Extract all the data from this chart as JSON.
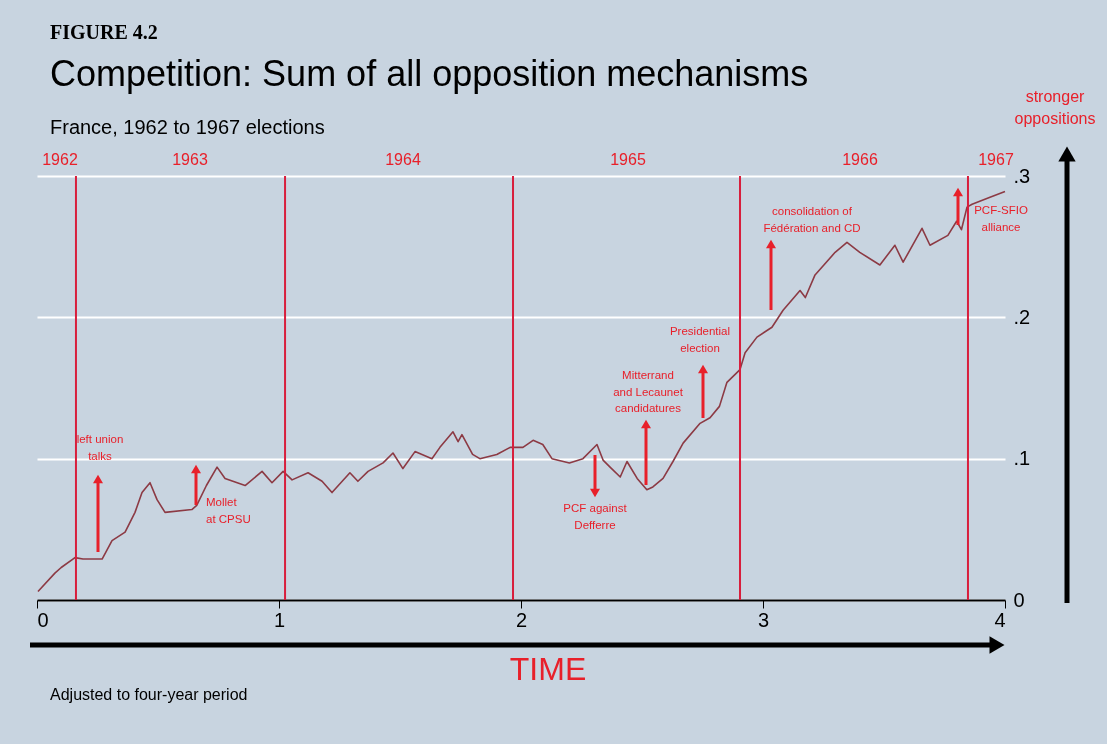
{
  "chart_data": {
    "type": "line",
    "title": "Competition: Sum of all opposition mechanisms",
    "subtitle": "France, 1962 to 1967 elections",
    "xlabel": "TIME",
    "ylabel": "stronger oppositions",
    "xlim": [
      0,
      4
    ],
    "xticks": [
      0,
      1,
      2,
      3,
      4
    ],
    "ylim": [
      0,
      0.3
    ],
    "yticks": [
      0,
      {
        "value": 0.1,
        "label": ".1"
      },
      {
        "value": 0.2,
        "label": ".2"
      },
      {
        "value": 0.3,
        "label": ".3"
      }
    ],
    "grid": "y",
    "series": [
      {
        "color": "#8c3a44",
        "x": [
          0.004,
          0.074,
          0.1,
          0.157,
          0.19,
          0.269,
          0.31,
          0.364,
          0.405,
          0.434,
          0.467,
          0.496,
          0.529,
          0.64,
          0.66,
          0.7,
          0.744,
          0.777,
          0.86,
          0.93,
          0.971,
          1.017,
          1.054,
          1.12,
          1.178,
          1.219,
          1.293,
          1.326,
          1.368,
          1.43,
          1.471,
          1.512,
          1.562,
          1.632,
          1.665,
          1.719,
          1.74,
          1.756,
          1.8,
          1.83,
          1.9,
          1.955,
          2.008,
          2.05,
          2.09,
          2.128,
          2.2,
          2.256,
          2.314,
          2.339,
          2.368,
          2.41,
          2.438,
          2.48,
          2.52,
          2.545,
          2.587,
          2.628,
          2.67,
          2.74,
          2.781,
          2.82,
          2.851,
          2.905,
          2.926,
          2.975,
          3.037,
          3.083,
          3.153,
          3.175,
          3.215,
          3.298,
          3.347,
          3.4,
          3.483,
          3.545,
          3.579,
          3.657,
          3.69,
          3.764,
          3.8,
          3.82,
          3.843,
          3.864,
          3.938,
          4.0
        ],
        "values": [
          0.006,
          0.019,
          0.023,
          0.03,
          0.029,
          0.029,
          0.042,
          0.048,
          0.062,
          0.076,
          0.083,
          0.071,
          0.062,
          0.064,
          0.067,
          0.081,
          0.094,
          0.086,
          0.081,
          0.091,
          0.083,
          0.091,
          0.085,
          0.09,
          0.084,
          0.076,
          0.09,
          0.084,
          0.091,
          0.097,
          0.104,
          0.093,
          0.105,
          0.1,
          0.108,
          0.119,
          0.112,
          0.117,
          0.103,
          0.1,
          0.103,
          0.108,
          0.108,
          0.113,
          0.11,
          0.1,
          0.097,
          0.1,
          0.11,
          0.099,
          0.094,
          0.087,
          0.098,
          0.086,
          0.078,
          0.08,
          0.086,
          0.098,
          0.111,
          0.125,
          0.129,
          0.137,
          0.154,
          0.163,
          0.175,
          0.186,
          0.193,
          0.205,
          0.219,
          0.214,
          0.23,
          0.246,
          0.253,
          0.246,
          0.237,
          0.251,
          0.239,
          0.263,
          0.251,
          0.258,
          0.268,
          0.262,
          0.278,
          0.28,
          0.285,
          0.289
        ]
      }
    ],
    "ref_lines": [
      {
        "axis": "x",
        "value": 0.161,
        "color": "#d81e3c"
      },
      {
        "axis": "x",
        "value": 1.025,
        "color": "#d81e3c"
      },
      {
        "axis": "x",
        "value": 1.967,
        "color": "#d81e3c"
      },
      {
        "axis": "x",
        "value": 2.905,
        "color": "#d81e3c"
      },
      {
        "axis": "x",
        "value": 3.847,
        "color": "#d81e3c"
      }
    ],
    "annotations": [
      "FIGURE 4.2",
      "1962",
      "1963",
      "1964",
      "1965",
      "1966",
      "1967",
      "left union talks",
      "Mollet at CPSU",
      "PCF against Defferre",
      "Mitterrand and Lecaunet candidatures",
      "Presidential election",
      "consolidation of Fédération and CD",
      "PCF-SFIO alliance",
      "Adjusted to four-year period"
    ]
  }
}
